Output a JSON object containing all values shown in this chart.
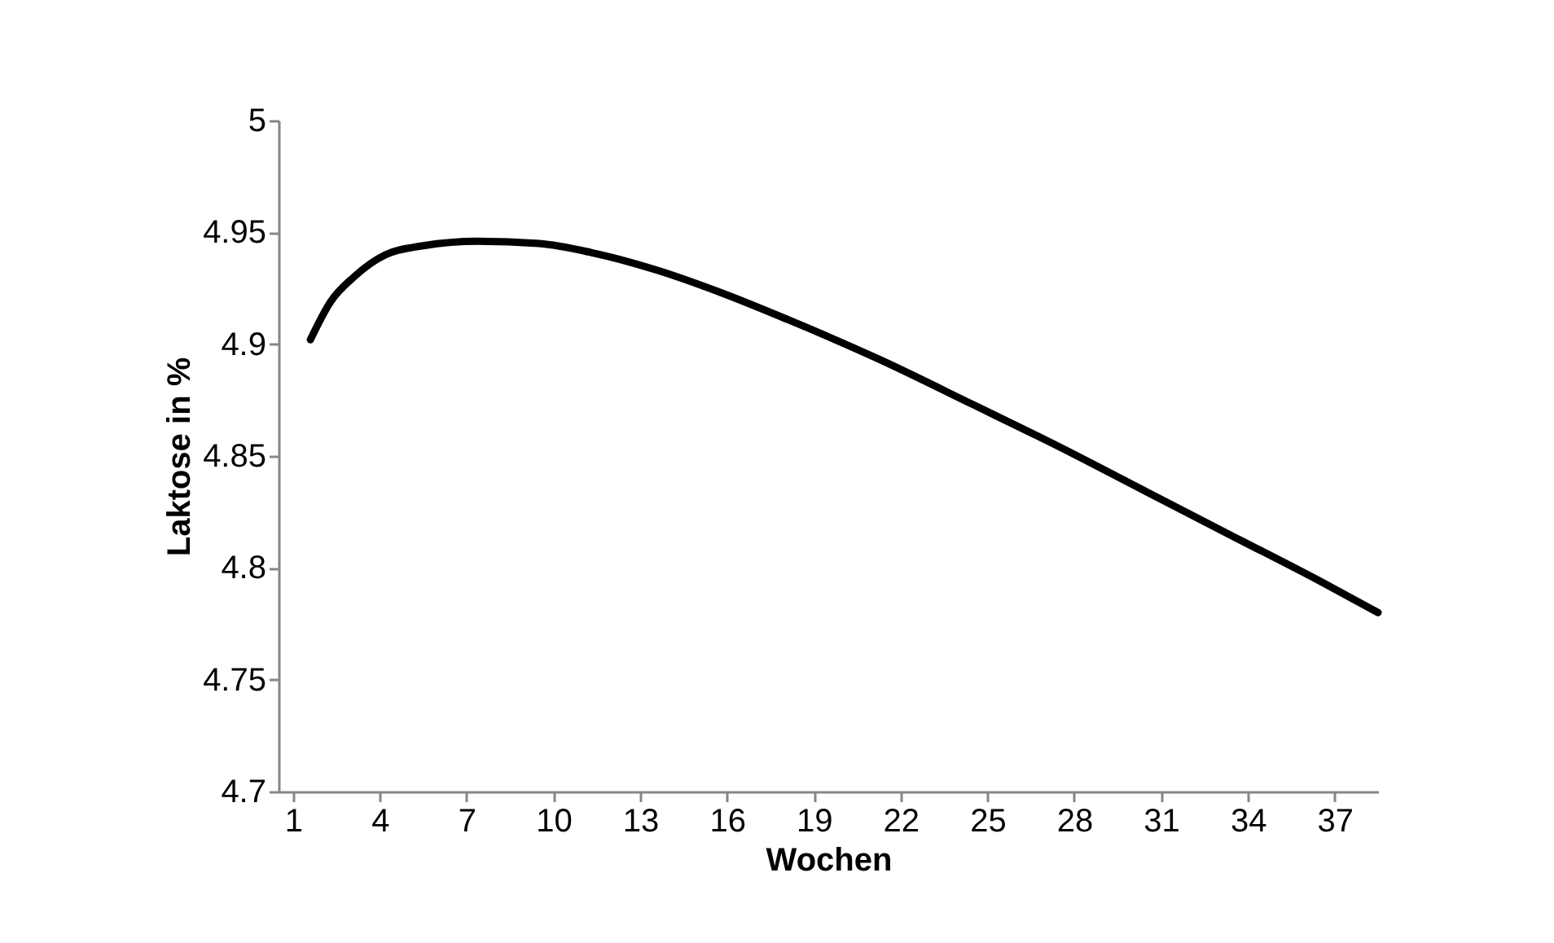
{
  "chart_data": {
    "type": "line",
    "xlabel": "Wochen",
    "ylabel": "Laktose in %",
    "x": [
      1.6,
      2.3,
      3.1,
      4.2,
      5.5,
      7.4,
      9.5,
      11.3,
      13.6,
      15.8,
      18.1,
      21.3,
      24.5,
      27.5,
      30.5,
      33.5,
      36.5,
      38.5
    ],
    "series": [
      {
        "color": "#000000",
        "values": [
          4.902,
          4.919,
          4.93,
          4.94,
          4.944,
          4.946,
          4.945,
          4.941,
          4.933,
          4.923,
          4.911,
          4.893,
          4.873,
          4.854,
          4.834,
          4.814,
          4.794,
          4.78
        ]
      }
    ],
    "xlim": [
      0.5,
      38.5
    ],
    "xticks": [
      1,
      4,
      7,
      10,
      13,
      16,
      19,
      22,
      25,
      28,
      31,
      34,
      37
    ],
    "ylim": [
      4.7,
      5
    ],
    "yticks": [
      4.7,
      4.75,
      4.8,
      4.85,
      4.9,
      4.95,
      5
    ],
    "grid": false,
    "marker": "none",
    "line_style": "solid"
  }
}
